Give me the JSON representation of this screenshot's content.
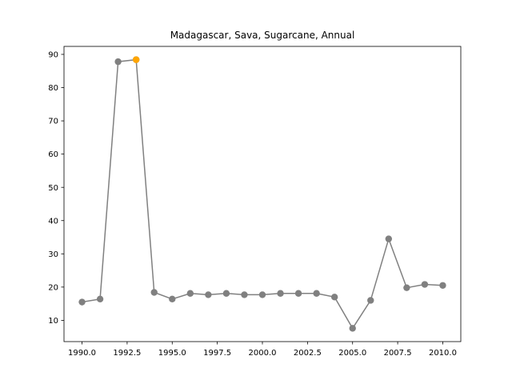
{
  "chart_data": {
    "type": "line",
    "title": "Madagascar, Sava, Sugarcane, Annual",
    "xlabel": "",
    "ylabel": "",
    "xlim": [
      1989.0,
      2011.0
    ],
    "ylim": [
      3.6,
      92.4
    ],
    "x_ticks": [
      1990.0,
      1992.5,
      1995.0,
      1997.5,
      2000.0,
      2002.5,
      2005.0,
      2007.5,
      2010.0
    ],
    "x_tick_labels": [
      "1990.0",
      "1992.5",
      "1995.0",
      "1997.5",
      "2000.0",
      "2002.5",
      "2005.0",
      "2007.5",
      "2010.0"
    ],
    "y_ticks": [
      10,
      20,
      30,
      40,
      50,
      60,
      70,
      80,
      90
    ],
    "y_tick_labels": [
      "10",
      "20",
      "30",
      "40",
      "50",
      "60",
      "70",
      "80",
      "90"
    ],
    "grid": false,
    "series": [
      {
        "x": [
          1990,
          1991,
          1992,
          1993,
          1994,
          1995,
          1996,
          1997,
          1998,
          1999,
          2000,
          2001,
          2002,
          2003,
          2004,
          2005,
          2006,
          2007,
          2008,
          2009,
          2010
        ],
        "values": [
          15.5,
          16.4,
          87.8,
          88.4,
          18.4,
          16.4,
          18.1,
          17.7,
          18.1,
          17.7,
          17.7,
          18.1,
          18.1,
          18.1,
          17.0,
          7.6,
          16.0,
          34.5,
          19.8,
          20.8,
          20.5
        ],
        "color": "#808080"
      }
    ],
    "highlight": {
      "x": 1993,
      "value": 88.4,
      "color": "#ffa500"
    }
  }
}
